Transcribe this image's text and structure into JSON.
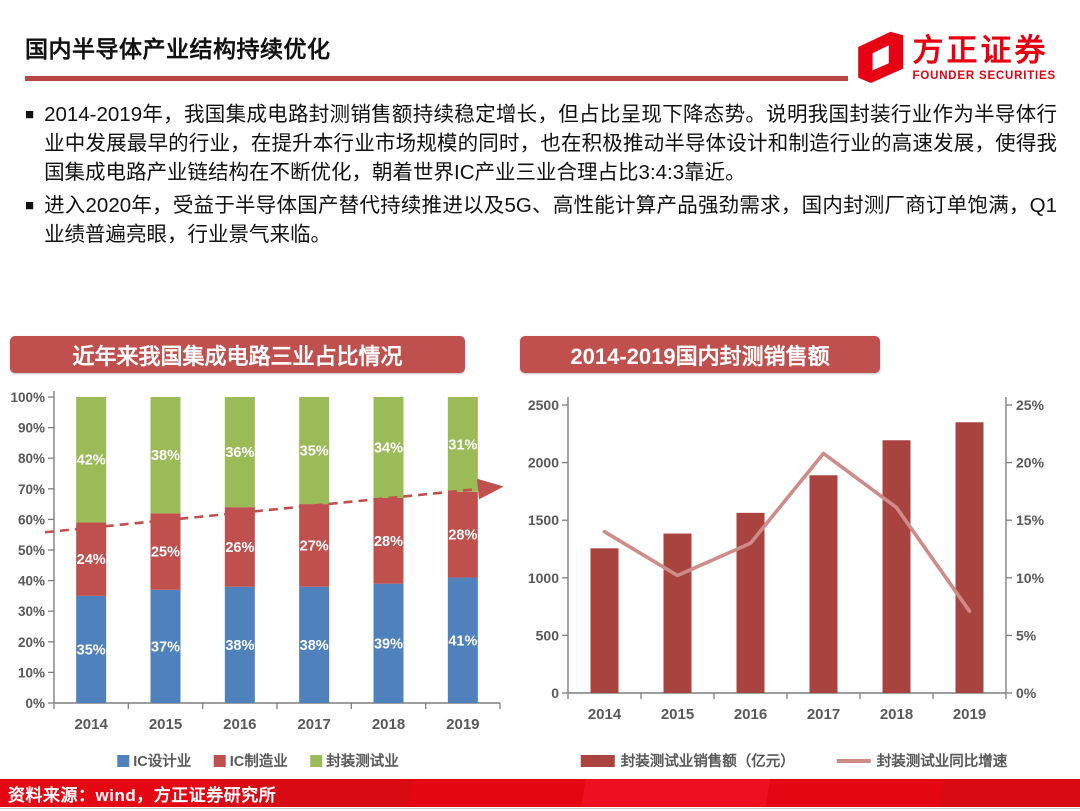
{
  "header": {
    "title": "国内半导体产业结构持续优化",
    "logo": {
      "name": "方正证券",
      "subtitle": "FOUNDER SECURITIES",
      "color": "#E60012"
    }
  },
  "bullet_marker": "■",
  "bullets": [
    "2014-2019年，我国集成电路封测销售额持续稳定增长，但占比呈现下降态势。说明我国封装行业作为半导体行业中发展最早的行业，在提升本行业市场规模的同时，也在积极推动半导体设计和制造行业的高速发展，使得我国集成电路产业链结构在不断优化，朝着世界IC产业三业合理占比3:4:3靠近。",
    "进入2020年，受益于半导体国产替代持续推进以及5G、高性能计算产品强劲需求，国内封测厂商订单饱满，Q1业绩普遍亮眼，行业景气来临。"
  ],
  "colors": {
    "accent_red": "#E60012",
    "banner_red": "#C0504D",
    "underline_red": "#B94745",
    "axis_text": "#595959",
    "axis_line": "#7f7f7f"
  },
  "chart_data": [
    {
      "type": "bar",
      "stacked": true,
      "title": "近年来我国集成电路三业占比情况",
      "categories": [
        "2014",
        "2015",
        "2016",
        "2017",
        "2018",
        "2019"
      ],
      "series": [
        {
          "name": "IC设计业",
          "color": "#4F81BD",
          "values": [
            35,
            37,
            38,
            38,
            39,
            41
          ]
        },
        {
          "name": "IC制造业",
          "color": "#C0504D",
          "values": [
            24,
            25,
            26,
            27,
            28,
            28
          ]
        },
        {
          "name": "封装测试业",
          "color": "#9BBB59",
          "values": [
            42,
            38,
            36,
            35,
            34,
            31
          ]
        }
      ],
      "ylim": [
        0,
        100
      ],
      "ytick_step": 10,
      "ytick_suffix": "%",
      "grid": false,
      "legend_position": "bottom",
      "data_label_suffix": "%",
      "trend_arrow": {
        "style": "dashed",
        "color": "#C0504D",
        "start_pct": 55.8,
        "end_pct": 70.5
      }
    },
    {
      "type": "bar",
      "combo": true,
      "title": "2014-2019国内封测销售额",
      "categories": [
        "2014",
        "2015",
        "2016",
        "2017",
        "2018",
        "2019"
      ],
      "bar_series": {
        "name": "封装测试业销售额（亿元）",
        "color": "#A9433F",
        "axis": "left",
        "values": [
          1256,
          1384,
          1564,
          1890,
          2194,
          2350
        ]
      },
      "line_series": {
        "name": "封装测试业同比增速",
        "color": "#CE8B88",
        "axis": "right",
        "values": [
          14.0,
          10.2,
          13.0,
          20.8,
          16.1,
          7.1
        ]
      },
      "left_ylim": [
        0,
        2500
      ],
      "left_ticks": [
        0,
        500,
        1000,
        1500,
        2000,
        2500
      ],
      "right_ylim": [
        0,
        25
      ],
      "right_tick_step": 5,
      "right_tick_suffix": "%",
      "grid": false,
      "legend_position": "bottom"
    }
  ],
  "footer": {
    "source": "资料来源：wind，方正证券研究所"
  }
}
